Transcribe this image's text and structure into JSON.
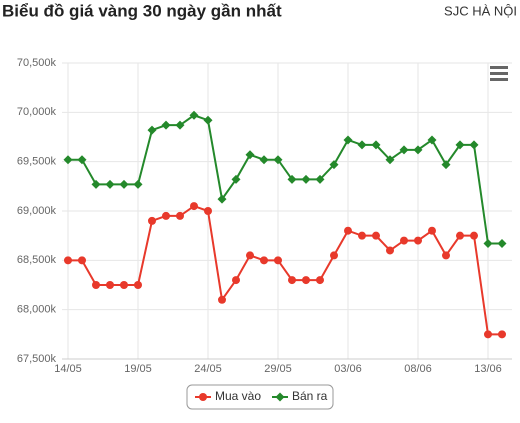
{
  "chart_data": {
    "type": "line",
    "title": "Biểu đồ giá vàng 30 ngày gần nhất",
    "subtitle": "SJC HÀ NỘI",
    "categories": [
      "14/05",
      null,
      null,
      null,
      null,
      "19/05",
      null,
      null,
      null,
      null,
      "24/05",
      null,
      null,
      null,
      null,
      "29/05",
      null,
      null,
      null,
      null,
      "03/06",
      null,
      null,
      null,
      null,
      "08/06",
      null,
      null,
      null,
      null,
      "13/06",
      null
    ],
    "series": [
      {
        "name": "Mua vào",
        "color": "#e8392b",
        "values": [
          68500,
          68500,
          68250,
          68250,
          68250,
          68250,
          68900,
          68950,
          68950,
          69050,
          69000,
          68100,
          68300,
          68550,
          68500,
          68500,
          68300,
          68300,
          68300,
          68550,
          68800,
          68750,
          68750,
          68600,
          68700,
          68700,
          68800,
          68550,
          68750,
          68750,
          67750,
          67750
        ]
      },
      {
        "name": "Bán ra",
        "color": "#24892b",
        "values": [
          69520,
          69520,
          69270,
          69270,
          69270,
          69270,
          69820,
          69870,
          69870,
          69970,
          69920,
          69120,
          69320,
          69570,
          69520,
          69520,
          69320,
          69320,
          69320,
          69470,
          69720,
          69670,
          69670,
          69520,
          69620,
          69620,
          69720,
          69470,
          69670,
          69670,
          68670,
          68670
        ]
      }
    ],
    "ylim": [
      67500,
      70500
    ],
    "yticks": [
      {
        "value": 67500,
        "label": "67,500k"
      },
      {
        "value": 68000,
        "label": "68,000k"
      },
      {
        "value": 68500,
        "label": "68,500k"
      },
      {
        "value": 69000,
        "label": "69,000k"
      },
      {
        "value": 69500,
        "label": "69,500k"
      },
      {
        "value": 70000,
        "label": "70,000k"
      },
      {
        "value": 70500,
        "label": "70,500k"
      }
    ],
    "grid": true
  }
}
